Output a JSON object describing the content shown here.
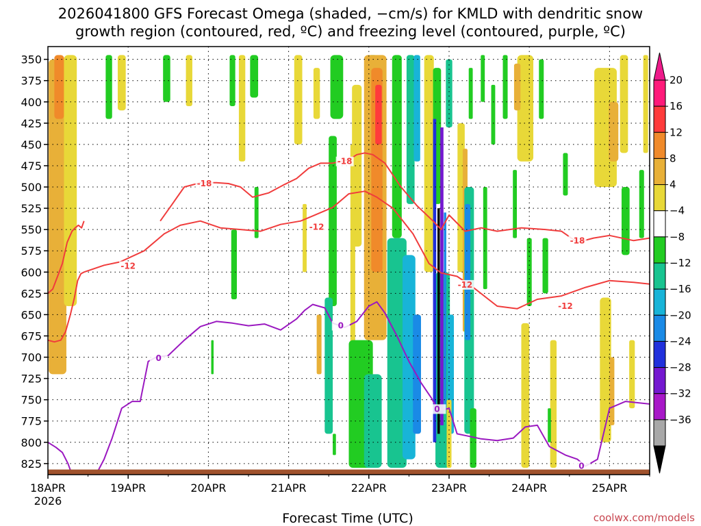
{
  "chart_data": {
    "type": "heatmap",
    "title_line1": "2026041800 GFS Forecast Omega (shaded, −cm/s) for KMLD with dendritic snow",
    "title_line2": "growth region (contoured, red, ºC) and freezing level (contoured, purple, ºC)",
    "xlabel": "Forecast Time (UTC)",
    "x_ticks": [
      "18APR",
      "19APR",
      "20APR",
      "21APR",
      "22APR",
      "23APR",
      "24APR",
      "25APR"
    ],
    "x_year": "2026",
    "xlim_days": [
      0,
      7.5
    ],
    "y_ticks": [
      350,
      375,
      400,
      425,
      450,
      475,
      500,
      525,
      550,
      575,
      600,
      625,
      650,
      675,
      700,
      725,
      750,
      775,
      800,
      825
    ],
    "ylim_hpa": [
      335,
      838
    ],
    "colorbar": {
      "labels": [
        "20",
        "16",
        "12",
        "8",
        "4",
        "−4",
        "−8",
        "−12",
        "−16",
        "−20",
        "−24",
        "−28",
        "−32",
        "−36"
      ],
      "colors": [
        "#ff1a7a",
        "#ff3b3b",
        "#f08a2a",
        "#e8b038",
        "#e8d838",
        "#ffffff",
        "#22cc22",
        "#18c490",
        "#18b4d8",
        "#1a8ae6",
        "#2030dc",
        "#7418d0",
        "#a818c8",
        "#a8a8a8"
      ],
      "under_color": "#000000",
      "over_color": "#ee1a8a"
    },
    "omega_blobs": [
      {
        "t": 0.12,
        "p0": 350,
        "p1": 720,
        "w": 0.22,
        "c": "#e8b038"
      },
      {
        "t": 0.14,
        "p0": 345,
        "p1": 420,
        "w": 0.12,
        "c": "#f08a2a"
      },
      {
        "t": 0.28,
        "p0": 345,
        "p1": 640,
        "w": 0.16,
        "c": "#e8d838"
      },
      {
        "t": 0.76,
        "p0": 345,
        "p1": 420,
        "w": 0.08,
        "c": "#22cc22"
      },
      {
        "t": 0.92,
        "p0": 345,
        "p1": 410,
        "w": 0.1,
        "c": "#e8d838"
      },
      {
        "t": 1.48,
        "p0": 345,
        "p1": 400,
        "w": 0.09,
        "c": "#22cc22"
      },
      {
        "t": 1.76,
        "p0": 345,
        "p1": 405,
        "w": 0.08,
        "c": "#e8d838"
      },
      {
        "t": 2.3,
        "p0": 345,
        "p1": 405,
        "w": 0.07,
        "c": "#22cc22"
      },
      {
        "t": 2.42,
        "p0": 345,
        "p1": 470,
        "w": 0.08,
        "c": "#e8d838"
      },
      {
        "t": 2.57,
        "p0": 345,
        "p1": 395,
        "w": 0.1,
        "c": "#22cc22"
      },
      {
        "t": 2.32,
        "p0": 550,
        "p1": 632,
        "w": 0.07,
        "c": "#22cc22"
      },
      {
        "t": 2.6,
        "p0": 500,
        "p1": 560,
        "w": 0.05,
        "c": "#22cc22"
      },
      {
        "t": 3.12,
        "p0": 345,
        "p1": 450,
        "w": 0.1,
        "c": "#e8d838"
      },
      {
        "t": 3.2,
        "p0": 520,
        "p1": 600,
        "w": 0.05,
        "c": "#e8d838"
      },
      {
        "t": 3.35,
        "p0": 360,
        "p1": 420,
        "w": 0.08,
        "c": "#e8d838"
      },
      {
        "t": 3.38,
        "p0": 650,
        "p1": 720,
        "w": 0.06,
        "c": "#e8b038"
      },
      {
        "t": 3.6,
        "p0": 345,
        "p1": 420,
        "w": 0.16,
        "c": "#22cc22"
      },
      {
        "t": 3.8,
        "p0": 450,
        "p1": 700,
        "w": 0.06,
        "c": "#e8d838"
      },
      {
        "t": 3.55,
        "p0": 440,
        "p1": 640,
        "w": 0.1,
        "c": "#22cc22"
      },
      {
        "t": 3.5,
        "p0": 630,
        "p1": 790,
        "w": 0.1,
        "c": "#18c490"
      },
      {
        "t": 3.9,
        "p0": 680,
        "p1": 830,
        "w": 0.3,
        "c": "#22cc22"
      },
      {
        "t": 4.05,
        "p0": 720,
        "p1": 830,
        "w": 0.22,
        "c": "#18c490"
      },
      {
        "t": 4.05,
        "p0": 345,
        "p1": 520,
        "w": 0.12,
        "c": "#22cc22"
      },
      {
        "t": 3.85,
        "p0": 380,
        "p1": 570,
        "w": 0.12,
        "c": "#e8d838"
      },
      {
        "t": 4.08,
        "p0": 345,
        "p1": 680,
        "w": 0.28,
        "c": "#e8b038"
      },
      {
        "t": 4.1,
        "p0": 360,
        "p1": 600,
        "w": 0.14,
        "c": "#f08a2a"
      },
      {
        "t": 4.12,
        "p0": 380,
        "p1": 450,
        "w": 0.08,
        "c": "#ff3b3b"
      },
      {
        "t": 4.35,
        "p0": 345,
        "p1": 560,
        "w": 0.12,
        "c": "#22cc22"
      },
      {
        "t": 4.52,
        "p0": 345,
        "p1": 520,
        "w": 0.1,
        "c": "#18c490"
      },
      {
        "t": 4.6,
        "p0": 345,
        "p1": 470,
        "w": 0.08,
        "c": "#18b4d8"
      },
      {
        "t": 4.35,
        "p0": 560,
        "p1": 830,
        "w": 0.24,
        "c": "#18c490"
      },
      {
        "t": 4.5,
        "p0": 580,
        "p1": 820,
        "w": 0.16,
        "c": "#18b4d8"
      },
      {
        "t": 4.6,
        "p0": 650,
        "p1": 790,
        "w": 0.1,
        "c": "#1a8ae6"
      },
      {
        "t": 4.75,
        "p0": 345,
        "p1": 600,
        "w": 0.12,
        "c": "#e8d838"
      },
      {
        "t": 4.85,
        "p0": 360,
        "p1": 520,
        "w": 0.1,
        "c": "#22cc22"
      },
      {
        "t": 4.92,
        "p0": 600,
        "p1": 830,
        "w": 0.18,
        "c": "#18c490"
      },
      {
        "t": 5.02,
        "p0": 650,
        "p1": 790,
        "w": 0.08,
        "c": "#18b4d8"
      },
      {
        "t": 5.0,
        "p0": 350,
        "p1": 430,
        "w": 0.08,
        "c": "#18c490"
      },
      {
        "t": 5.15,
        "p0": 425,
        "p1": 600,
        "w": 0.09,
        "c": "#e8d838"
      },
      {
        "t": 5.2,
        "p0": 455,
        "p1": 670,
        "w": 0.06,
        "c": "#e8b038"
      },
      {
        "t": 5.27,
        "p0": 360,
        "p1": 420,
        "w": 0.05,
        "c": "#22cc22"
      },
      {
        "t": 5.25,
        "p0": 500,
        "p1": 790,
        "w": 0.12,
        "c": "#18c490"
      },
      {
        "t": 5.23,
        "p0": 520,
        "p1": 680,
        "w": 0.07,
        "c": "#1a8ae6"
      },
      {
        "t": 5.3,
        "p0": 760,
        "p1": 830,
        "w": 0.08,
        "c": "#22cc22"
      },
      {
        "t": 5.42,
        "p0": 345,
        "p1": 400,
        "w": 0.05,
        "c": "#22cc22"
      },
      {
        "t": 5.55,
        "p0": 380,
        "p1": 450,
        "w": 0.05,
        "c": "#22cc22"
      },
      {
        "t": 5.45,
        "p0": 500,
        "p1": 620,
        "w": 0.05,
        "c": "#22cc22"
      },
      {
        "t": 5.7,
        "p0": 345,
        "p1": 420,
        "w": 0.06,
        "c": "#22cc22"
      },
      {
        "t": 5.82,
        "p0": 480,
        "p1": 560,
        "w": 0.05,
        "c": "#22cc22"
      },
      {
        "t": 5.95,
        "p0": 345,
        "p1": 470,
        "w": 0.2,
        "c": "#e8d838"
      },
      {
        "t": 5.85,
        "p0": 355,
        "p1": 410,
        "w": 0.08,
        "c": "#e8b038"
      },
      {
        "t": 6.15,
        "p0": 350,
        "p1": 420,
        "w": 0.06,
        "c": "#22cc22"
      },
      {
        "t": 6.2,
        "p0": 560,
        "p1": 625,
        "w": 0.07,
        "c": "#22cc22"
      },
      {
        "t": 6.45,
        "p0": 460,
        "p1": 510,
        "w": 0.06,
        "c": "#22cc22"
      },
      {
        "t": 5.95,
        "p0": 660,
        "p1": 830,
        "w": 0.1,
        "c": "#e8d838"
      },
      {
        "t": 6.0,
        "p0": 560,
        "p1": 640,
        "w": 0.06,
        "c": "#22cc22"
      },
      {
        "t": 6.3,
        "p0": 680,
        "p1": 830,
        "w": 0.08,
        "c": "#e8d838"
      },
      {
        "t": 6.25,
        "p0": 760,
        "p1": 800,
        "w": 0.04,
        "c": "#22cc22"
      },
      {
        "t": 6.95,
        "p0": 360,
        "p1": 500,
        "w": 0.28,
        "c": "#e8d838"
      },
      {
        "t": 7.05,
        "p0": 400,
        "p1": 470,
        "w": 0.12,
        "c": "#e8b038"
      },
      {
        "t": 7.18,
        "p0": 345,
        "p1": 460,
        "w": 0.1,
        "c": "#e8d838"
      },
      {
        "t": 7.45,
        "p0": 345,
        "p1": 460,
        "w": 0.06,
        "c": "#e8d838"
      },
      {
        "t": 7.2,
        "p0": 500,
        "p1": 580,
        "w": 0.1,
        "c": "#22cc22"
      },
      {
        "t": 7.4,
        "p0": 480,
        "p1": 560,
        "w": 0.06,
        "c": "#22cc22"
      },
      {
        "t": 6.95,
        "p0": 630,
        "p1": 800,
        "w": 0.14,
        "c": "#e8d838"
      },
      {
        "t": 7.03,
        "p0": 700,
        "p1": 780,
        "w": 0.06,
        "c": "#e8b038"
      },
      {
        "t": 7.28,
        "p0": 680,
        "p1": 760,
        "w": 0.07,
        "c": "#e8d838"
      },
      {
        "t": 2.05,
        "p0": 680,
        "p1": 720,
        "w": 0.03,
        "c": "#22cc22"
      },
      {
        "t": 3.57,
        "p0": 790,
        "p1": 815,
        "w": 0.04,
        "c": "#22cc22"
      },
      {
        "t": 5.0,
        "p0": 750,
        "p1": 830,
        "w": 0.06,
        "c": "#e8d838"
      }
    ],
    "dark_spike": {
      "t": 4.87,
      "p0": 525,
      "p1": 790,
      "w": 0.03
    },
    "dark_spike_edges": [
      {
        "t": 4.82,
        "p0": 420,
        "p1": 800,
        "w": 0.04,
        "c": "#2030dc"
      },
      {
        "t": 4.91,
        "p0": 430,
        "p1": 780,
        "w": 0.04,
        "c": "#7418d0"
      },
      {
        "t": 4.95,
        "p0": 530,
        "p1": 760,
        "w": 0.03,
        "c": "#1a8ae6"
      }
    ],
    "series": [
      {
        "name": "dendritic -18",
        "color": "#f03c3c",
        "label": "-18",
        "label_positions": [
          [
            1.95,
            496
          ],
          [
            3.7,
            470
          ],
          [
            6.6,
            563
          ]
        ],
        "t": [
          1.4,
          1.55,
          1.7,
          1.9,
          2.1,
          2.25,
          2.4,
          2.55,
          2.75,
          2.95,
          3.1,
          3.25,
          3.4,
          3.55,
          3.75,
          3.85,
          3.95,
          4.05,
          4.2,
          4.4,
          4.6,
          4.8,
          4.9,
          5.0,
          5.2,
          5.4,
          5.6,
          5.9,
          6.2,
          6.4,
          6.6,
          6.8,
          7.0,
          7.3,
          7.5
        ],
        "p": [
          540,
          520,
          500,
          495,
          495,
          496,
          500,
          512,
          507,
          497,
          490,
          478,
          472,
          472,
          468,
          462,
          460,
          462,
          472,
          500,
          522,
          540,
          550,
          533,
          552,
          548,
          552,
          548,
          550,
          552,
          565,
          560,
          557,
          563,
          560
        ]
      },
      {
        "name": "dendritic -12",
        "color": "#f03c3c",
        "label": "-12",
        "label_positions": [
          [
            1.0,
            593
          ],
          [
            3.35,
            547
          ],
          [
            5.2,
            615
          ],
          [
            6.45,
            640
          ]
        ],
        "t": [
          0.45,
          0.7,
          0.9,
          1.2,
          1.45,
          1.65,
          1.9,
          2.15,
          2.4,
          2.65,
          2.9,
          3.15,
          3.3,
          3.55,
          3.75,
          3.95,
          4.1,
          4.3,
          4.55,
          4.75,
          4.9,
          5.1,
          5.3,
          5.6,
          5.85,
          6.1,
          6.4,
          6.7,
          7.0,
          7.3,
          7.5
        ],
        "p": [
          600,
          592,
          588,
          575,
          555,
          545,
          540,
          548,
          550,
          552,
          544,
          540,
          534,
          524,
          508,
          505,
          512,
          525,
          555,
          590,
          601,
          605,
          618,
          640,
          643,
          632,
          628,
          618,
          610,
          612,
          614
        ]
      },
      {
        "name": "dendritic left -18/-12",
        "color": "#f03c3c",
        "label": "",
        "label_positions": [],
        "t": [
          0.0,
          0.06,
          0.12,
          0.18,
          0.24,
          0.3,
          0.34,
          0.38,
          0.42,
          0.45
        ],
        "p": [
          625,
          620,
          605,
          590,
          565,
          552,
          548,
          545,
          548,
          540
        ]
      },
      {
        "name": "dendritic left lower",
        "color": "#f03c3c",
        "label": "",
        "label_positions": [],
        "t": [
          0.0,
          0.08,
          0.16,
          0.22,
          0.28,
          0.33,
          0.37,
          0.41,
          0.45
        ],
        "p": [
          680,
          682,
          680,
          670,
          650,
          630,
          610,
          602,
          600
        ]
      },
      {
        "name": "freezing level 0",
        "color": "#9a18c0",
        "label": "0",
        "label_positions": [
          [
            1.38,
            701
          ],
          [
            3.65,
            663
          ],
          [
            4.85,
            761
          ],
          [
            6.65,
            828
          ]
        ],
        "t": [
          0.6,
          0.7,
          0.8,
          0.92,
          1.05,
          1.15,
          1.25,
          1.35,
          1.5,
          1.7,
          1.9,
          2.1,
          2.3,
          2.5,
          2.7,
          2.9,
          3.1,
          3.2,
          3.3,
          3.45,
          3.55,
          3.7,
          3.85,
          4.0,
          4.1,
          4.2,
          4.35,
          4.5,
          4.65,
          4.78,
          4.85,
          4.92,
          5.0,
          5.1,
          5.2,
          5.4,
          5.6,
          5.8,
          5.95,
          6.1,
          6.25,
          6.45,
          6.6,
          6.7,
          6.85,
          7.0,
          7.2,
          7.5
        ],
        "p": [
          838,
          820,
          795,
          760,
          752,
          752,
          705,
          700,
          698,
          680,
          664,
          658,
          660,
          663,
          661,
          668,
          655,
          645,
          638,
          642,
          660,
          665,
          658,
          640,
          635,
          648,
          675,
          705,
          730,
          748,
          760,
          762,
          760,
          790,
          792,
          796,
          798,
          795,
          782,
          780,
          805,
          815,
          820,
          828,
          820,
          760,
          752,
          755
        ]
      },
      {
        "name": "freezing level left",
        "color": "#9a18c0",
        "label": "",
        "label_positions": [],
        "t": [
          0.0,
          0.1,
          0.18,
          0.25,
          0.3
        ],
        "p": [
          800,
          806,
          812,
          825,
          838
        ]
      }
    ],
    "terrain_color": "#a0522d",
    "terrain_top_hpa": 832,
    "credit": "coolwx.com/models",
    "credit_color": "#c84650"
  }
}
